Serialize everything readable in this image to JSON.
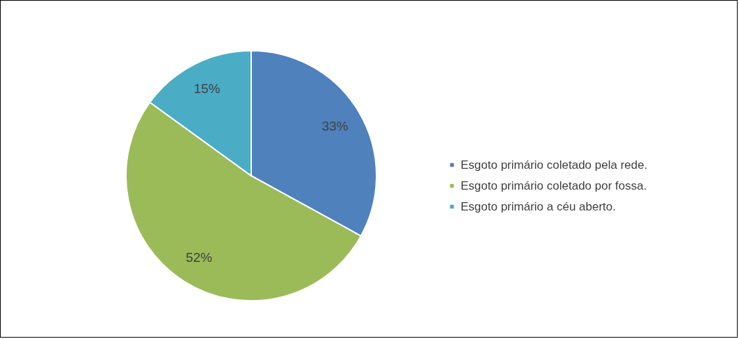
{
  "chart_data": {
    "type": "pie",
    "categories": [
      "Esgoto primário coletado pela rede.",
      "Esgoto primário coletado por fossa.",
      "Esgoto primário a céu aberto."
    ],
    "values": [
      33,
      52,
      15
    ],
    "colors": [
      "#4f81bd",
      "#9bbb59",
      "#4bacc6"
    ],
    "value_labels": [
      "33%",
      "52%",
      "15%"
    ],
    "legend": "right"
  }
}
